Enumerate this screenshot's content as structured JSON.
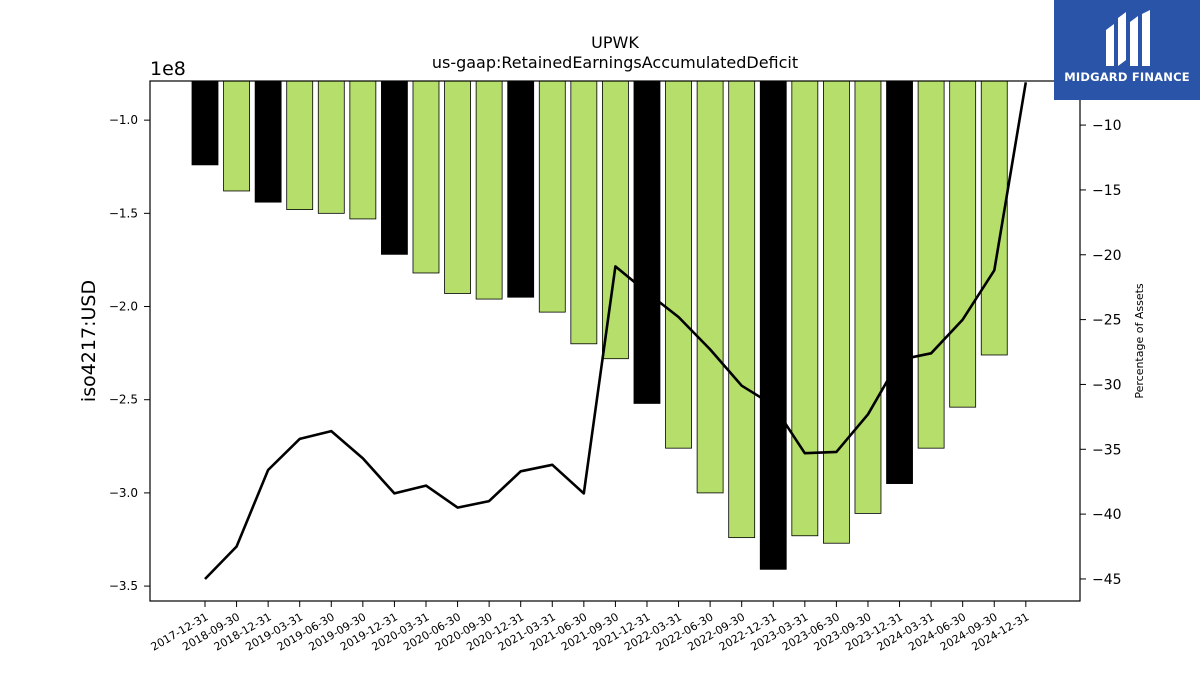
{
  "logo": {
    "text": "MIDGARD FINANCE",
    "bg_color": "#2a54a8"
  },
  "chart_data": {
    "type": "bar",
    "title": "UPWK",
    "subtitle": "us-gaap:RetainedEarningsAccumulatedDeficit",
    "ylabel": "iso4217:USD",
    "y2label": "Percentage of Assets",
    "offset_label": "1e8",
    "ylim": [
      -3.58,
      -0.79
    ],
    "y2lim": [
      -46.7,
      -6.6
    ],
    "yticks": [
      -1.0,
      -1.5,
      -2.0,
      -2.5,
      -3.0,
      -3.5
    ],
    "ytick_labels": [
      "−1.0",
      "−1.5",
      "−2.0",
      "−2.5",
      "−3.0",
      "−3.5"
    ],
    "y2ticks": [
      -10,
      -15,
      -20,
      -25,
      -30,
      -35,
      -40,
      -45
    ],
    "y2tick_labels": [
      "−10",
      "−15",
      "−20",
      "−25",
      "−30",
      "−35",
      "−40",
      "−45"
    ],
    "colors": {
      "annual": "#000000",
      "quarterly": "#b5de6b",
      "line": "#000000"
    },
    "categories": [
      "2017-12-31",
      "2018-09-30",
      "2018-12-31",
      "2019-03-31",
      "2019-06-30",
      "2019-09-30",
      "2019-12-31",
      "2020-03-31",
      "2020-06-30",
      "2020-09-30",
      "2020-12-31",
      "2021-03-31",
      "2021-06-30",
      "2021-09-30",
      "2021-12-31",
      "2022-03-31",
      "2022-06-30",
      "2022-09-30",
      "2022-12-31",
      "2023-03-31",
      "2023-06-30",
      "2023-09-30",
      "2023-12-31",
      "2024-03-31",
      "2024-06-30",
      "2024-09-30",
      "2024-12-31"
    ],
    "bar_values": [
      -1.24,
      -1.38,
      -1.44,
      -1.48,
      -1.5,
      -1.53,
      -1.72,
      -1.82,
      -1.93,
      -1.96,
      -1.95,
      -2.03,
      -2.2,
      -2.28,
      -2.52,
      -2.76,
      -3.0,
      -3.24,
      -3.41,
      -3.23,
      -3.27,
      -3.11,
      -2.95,
      -2.76,
      -2.54,
      -2.26,
      null
    ],
    "bar_kind": [
      "annual",
      "quarterly",
      "annual",
      "quarterly",
      "quarterly",
      "quarterly",
      "annual",
      "quarterly",
      "quarterly",
      "quarterly",
      "annual",
      "quarterly",
      "quarterly",
      "quarterly",
      "annual",
      "quarterly",
      "quarterly",
      "quarterly",
      "annual",
      "quarterly",
      "quarterly",
      "quarterly",
      "annual",
      "quarterly",
      "quarterly",
      "quarterly",
      "annual"
    ],
    "series": [
      {
        "values": [
          -45.0,
          -42.5,
          -36.6,
          -34.2,
          -33.6,
          -35.7,
          -38.4,
          -37.8,
          -39.5,
          -39.0,
          -36.7,
          -36.2,
          -38.4,
          -20.9,
          -22.9,
          -24.8,
          -27.3,
          -30.1,
          -31.6,
          -35.3,
          -35.2,
          -32.3,
          -28.1,
          -27.6,
          -25.0,
          -21.2,
          -6.7
        ]
      }
    ]
  }
}
